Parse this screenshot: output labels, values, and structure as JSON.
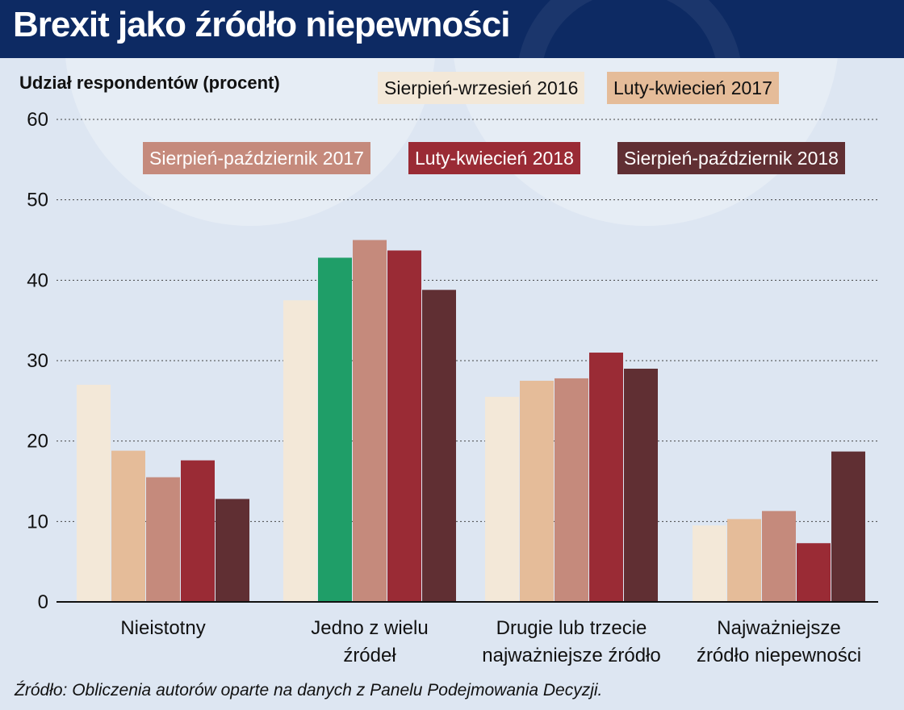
{
  "header": {
    "title": "Brexit jako źródło niepewności"
  },
  "source": "Źródło: Obliczenia autorów oparte na danych z Panelu Podejmowania Decyzji.",
  "chart_data": {
    "type": "bar",
    "title": "Brexit jako źródło niepewności",
    "ylabel": "Udział respondentów (procent)",
    "xlabel": "",
    "ylim": [
      0,
      60
    ],
    "yticks": [
      0,
      10,
      20,
      30,
      40,
      50,
      60
    ],
    "grid": true,
    "legend_placement": "top",
    "categories": [
      [
        "Nieistotny"
      ],
      [
        "Jedno z wielu",
        "źródeł"
      ],
      [
        "Drugie lub trzecie",
        "najważniejsze źródło"
      ],
      [
        "Najważniejsze",
        "źródło niepewności"
      ]
    ],
    "series": [
      {
        "name": "Sierpień-wrzesień 2016",
        "color": "#f3e8d8",
        "text_color": "#111111",
        "values": [
          27,
          37.5,
          25.5,
          9.5
        ]
      },
      {
        "name": "Luty-kwiecień 2017",
        "color": "#e5bc99",
        "text_color": "#111111",
        "values": [
          18.8,
          42.8,
          27.5,
          10.3
        ]
      },
      {
        "name": "Sierpień-październik 2017",
        "color": "#c58a7c",
        "text_color": "#ffffff",
        "values": [
          15.5,
          45,
          27.8,
          11.3
        ]
      },
      {
        "name": "Luty-kwiecień 2018",
        "color": "#9a2b35",
        "text_color": "#ffffff",
        "values": [
          17.6,
          43.7,
          31,
          7.3
        ]
      },
      {
        "name": "Sierpień-październik 2018",
        "color": "#602f33",
        "text_color": "#ffffff",
        "values": [
          12.8,
          38.8,
          29,
          18.7
        ]
      }
    ],
    "highlight": {
      "category_index": 1,
      "series_index": 1,
      "color": "#1f9e68"
    }
  }
}
